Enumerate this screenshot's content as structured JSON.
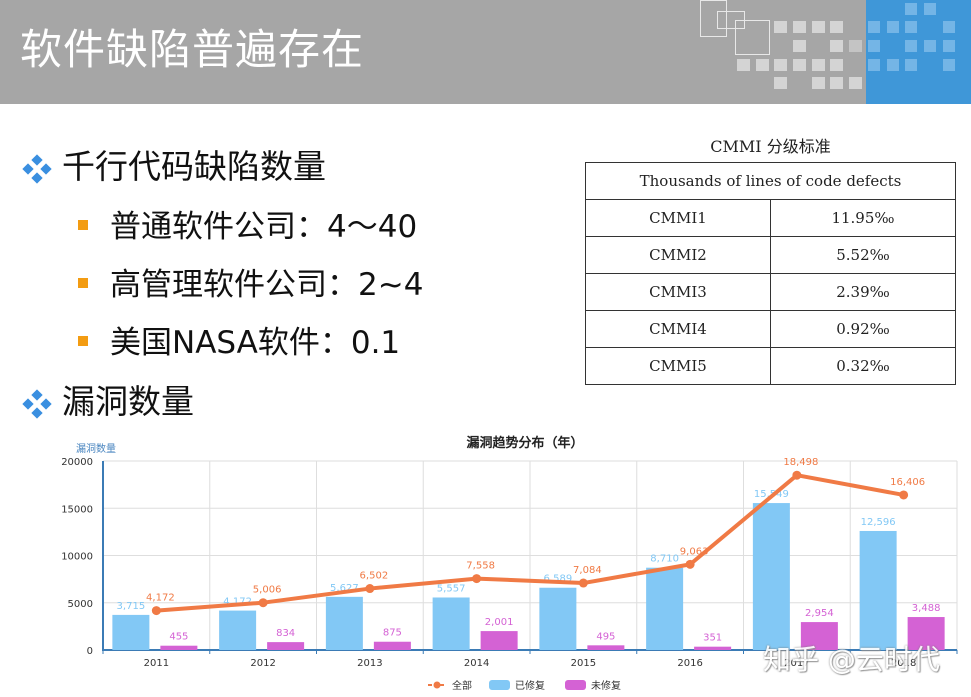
{
  "slide": {
    "title": "软件缺陷普遍存在"
  },
  "bullets": [
    {
      "label": "千行代码缺陷数量",
      "children": [
        {
          "label": "普通软件公司：4～40"
        },
        {
          "label": "高管理软件公司：2~4"
        },
        {
          "label": "美国NASA软件：0.1"
        }
      ]
    },
    {
      "label": "漏洞数量",
      "children": []
    }
  ],
  "cmmi_table": {
    "caption": "CMMI 分级标准",
    "header": "Thousands of lines of code defects",
    "rows": [
      {
        "level": "CMMI1",
        "value": "11.95‰"
      },
      {
        "level": "CMMI2",
        "value": "5.52‰"
      },
      {
        "level": "CMMI3",
        "value": "2.39‰"
      },
      {
        "level": "CMMI4",
        "value": "0.92‰"
      },
      {
        "level": "CMMI5",
        "value": "0.32‰"
      }
    ]
  },
  "chart_data": {
    "type": "bar",
    "title": "漏洞趋势分布（年）",
    "xlabel": "",
    "ylabel": "漏洞数量",
    "ylim": [
      0,
      20000
    ],
    "yticks": [
      "0",
      "5000",
      "10000",
      "15000",
      "20000"
    ],
    "grid": true,
    "legend_position": "bottom-center",
    "categories": [
      "2011",
      "2012",
      "2013",
      "2014",
      "2015",
      "2016",
      "2017",
      "2018"
    ],
    "series": [
      {
        "name": "全部",
        "type": "line",
        "color": "#f07a45",
        "values": [
          4172,
          5006,
          6502,
          7558,
          7084,
          9063,
          18498,
          16406
        ],
        "labels": [
          "4,172",
          "5,006",
          "6,502",
          "7,558",
          "7,084",
          "9,063",
          "18,498",
          "16,406"
        ]
      },
      {
        "name": "已修复",
        "type": "bar",
        "color": "#82c8f5",
        "values": [
          3715,
          4172,
          5627,
          5557,
          6589,
          8710,
          15549,
          12596
        ],
        "labels": [
          "3,715",
          "4,172",
          "5,627",
          "5,557",
          "6,589",
          "8,710",
          "15,549",
          "12,596"
        ]
      },
      {
        "name": "未修复",
        "type": "bar",
        "color": "#d462d4",
        "values": [
          455,
          834,
          875,
          2001,
          495,
          351,
          2954,
          3488
        ],
        "labels": [
          "455",
          "834",
          "875",
          "2,001",
          "495",
          "351",
          "2,954",
          "3,488"
        ]
      }
    ]
  },
  "watermark": "知乎 @云时代"
}
